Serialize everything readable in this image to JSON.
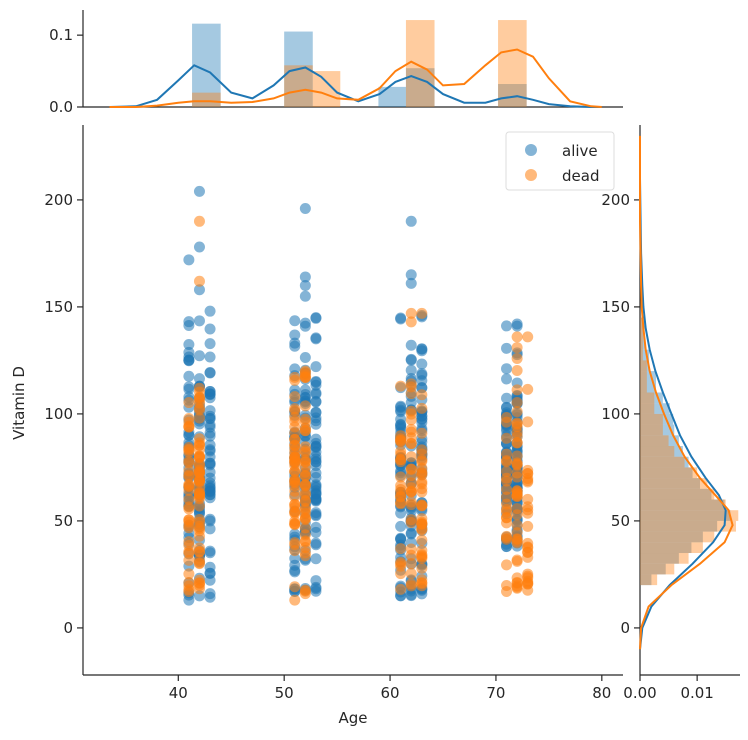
{
  "chart_data": {
    "type": "scatter",
    "title": "",
    "xlabel": "Age",
    "ylabel": "Vitamin D",
    "xlim": [
      31,
      82
    ],
    "ylim": [
      -22,
      235
    ],
    "xticks": [
      40,
      50,
      60,
      70,
      80
    ],
    "yticks": [
      0,
      50,
      100,
      150,
      200
    ],
    "legend": {
      "position": "top-right",
      "entries": [
        "alive",
        "dead"
      ]
    },
    "colors": {
      "alive": "#1f77b4",
      "dead": "#ff7f0e",
      "axis": "#262626"
    },
    "groups": [
      {
        "label": "alive",
        "clusters": [
          {
            "age_min": 41,
            "age_max": 43,
            "vitd_range": [
              13,
              148
            ],
            "dense_range": [
              22,
              130
            ]
          },
          {
            "age_min": 51,
            "age_max": 53,
            "vitd_range": [
              17,
              145
            ],
            "dense_range": [
              20,
              125
            ]
          },
          {
            "age_min": 61,
            "age_max": 63,
            "vitd_range": [
              15,
              146
            ],
            "dense_range": [
              18,
              125
            ]
          },
          {
            "age_min": 71,
            "age_max": 72,
            "vitd_range": [
              38,
              142
            ],
            "dense_range": [
              40,
              110
            ]
          }
        ],
        "outliers": [
          {
            "age": 42,
            "vitd": 204
          },
          {
            "age": 42,
            "vitd": 178
          },
          {
            "age": 41,
            "vitd": 172
          },
          {
            "age": 42,
            "vitd": 158
          },
          {
            "age": 52,
            "vitd": 196
          },
          {
            "age": 52,
            "vitd": 164
          },
          {
            "age": 52,
            "vitd": 160
          },
          {
            "age": 52,
            "vitd": 155
          },
          {
            "age": 62,
            "vitd": 190
          },
          {
            "age": 62,
            "vitd": 165
          },
          {
            "age": 62,
            "vitd": 161
          },
          {
            "age": 72,
            "vitd": 141
          }
        ]
      },
      {
        "label": "dead",
        "clusters": [
          {
            "age_min": 41,
            "age_max": 42,
            "vitd_range": [
              17,
              112
            ],
            "dense_range": [
              25,
              105
            ]
          },
          {
            "age_min": 51,
            "age_max": 52,
            "vitd_range": [
              13,
              120
            ],
            "dense_range": [
              22,
              110
            ]
          },
          {
            "age_min": 61,
            "age_max": 63,
            "vitd_range": [
              18,
              147
            ],
            "dense_range": [
              20,
              110
            ]
          },
          {
            "age_min": 71,
            "age_max": 73,
            "vitd_range": [
              17,
              136
            ],
            "dense_range": [
              20,
              105
            ]
          }
        ],
        "outliers": [
          {
            "age": 42,
            "vitd": 190
          },
          {
            "age": 42,
            "vitd": 162
          },
          {
            "age": 62,
            "vitd": 147
          },
          {
            "age": 62,
            "vitd": 143
          },
          {
            "age": 72,
            "vitd": 136
          },
          {
            "age": 72,
            "vitd": 131
          }
        ]
      }
    ],
    "marginal_top": {
      "xlim": [
        31,
        82
      ],
      "ylim": [
        0,
        0.135
      ],
      "yticks": [
        0.0,
        0.1
      ],
      "ytick_labels": [
        "0.0",
        "0.1"
      ],
      "hist": {
        "alive": [
          {
            "x0": 41.3,
            "x1": 44.0,
            "h": 0.116
          },
          {
            "x0": 50.0,
            "x1": 52.7,
            "h": 0.105
          },
          {
            "x0": 58.9,
            "x1": 61.5,
            "h": 0.028
          },
          {
            "x0": 61.5,
            "x1": 64.2,
            "h": 0.054
          },
          {
            "x0": 70.2,
            "x1": 72.9,
            "h": 0.032
          }
        ],
        "dead": [
          {
            "x0": 41.3,
            "x1": 44.0,
            "h": 0.02
          },
          {
            "x0": 50.0,
            "x1": 52.7,
            "h": 0.058
          },
          {
            "x0": 52.7,
            "x1": 55.3,
            "h": 0.05
          },
          {
            "x0": 61.5,
            "x1": 64.2,
            "h": 0.121
          },
          {
            "x0": 70.2,
            "x1": 72.9,
            "h": 0.121
          }
        ]
      },
      "kde": {
        "x": [
          33.5,
          36,
          38,
          40,
          41.5,
          43,
          45,
          47,
          49,
          50.5,
          52,
          53.5,
          55,
          57,
          59,
          60.5,
          62,
          63.5,
          65,
          67,
          69,
          70.5,
          72,
          73.5,
          75,
          77,
          79,
          80
        ],
        "alive": [
          0.0,
          0.001,
          0.01,
          0.037,
          0.058,
          0.048,
          0.02,
          0.012,
          0.03,
          0.05,
          0.055,
          0.042,
          0.02,
          0.008,
          0.018,
          0.035,
          0.043,
          0.035,
          0.018,
          0.006,
          0.006,
          0.012,
          0.015,
          0.01,
          0.004,
          0.001,
          0.0,
          0.0
        ],
        "dead": [
          0.0,
          0.0,
          0.002,
          0.006,
          0.008,
          0.008,
          0.006,
          0.007,
          0.012,
          0.02,
          0.024,
          0.02,
          0.012,
          0.01,
          0.026,
          0.05,
          0.063,
          0.052,
          0.03,
          0.032,
          0.058,
          0.076,
          0.08,
          0.07,
          0.04,
          0.008,
          0.001,
          0.0
        ]
      }
    },
    "marginal_right": {
      "xlim": [
        0,
        0.0175
      ],
      "xticks": [
        0.0,
        0.01
      ],
      "xtick_labels": [
        "0.00",
        "0.01"
      ],
      "hist": {
        "alive": [
          {
            "y0": 20,
            "y1": 25,
            "w": 0.002
          },
          {
            "y0": 25,
            "y1": 30,
            "w": 0.0045
          },
          {
            "y0": 30,
            "y1": 35,
            "w": 0.0068
          },
          {
            "y0": 35,
            "y1": 40,
            "w": 0.009
          },
          {
            "y0": 40,
            "y1": 45,
            "w": 0.011
          },
          {
            "y0": 45,
            "y1": 50,
            "w": 0.0135
          },
          {
            "y0": 50,
            "y1": 55,
            "w": 0.0158
          },
          {
            "y0": 55,
            "y1": 60,
            "w": 0.0148
          },
          {
            "y0": 60,
            "y1": 65,
            "w": 0.0125
          },
          {
            "y0": 65,
            "y1": 70,
            "w": 0.0105
          },
          {
            "y0": 70,
            "y1": 75,
            "w": 0.0092
          },
          {
            "y0": 75,
            "y1": 80,
            "w": 0.0085
          },
          {
            "y0": 80,
            "y1": 85,
            "w": 0.0075
          },
          {
            "y0": 85,
            "y1": 90,
            "w": 0.0068
          },
          {
            "y0": 90,
            "y1": 95,
            "w": 0.006
          },
          {
            "y0": 95,
            "y1": 100,
            "w": 0.0058
          },
          {
            "y0": 100,
            "y1": 105,
            "w": 0.0052
          },
          {
            "y0": 105,
            "y1": 110,
            "w": 0.004
          },
          {
            "y0": 110,
            "y1": 120,
            "w": 0.0028
          },
          {
            "y0": 120,
            "y1": 130,
            "w": 0.0016
          },
          {
            "y0": 130,
            "y1": 145,
            "w": 0.0008
          }
        ],
        "dead": [
          {
            "y0": 20,
            "y1": 25,
            "w": 0.003
          },
          {
            "y0": 25,
            "y1": 30,
            "w": 0.006
          },
          {
            "y0": 30,
            "y1": 35,
            "w": 0.0085
          },
          {
            "y0": 35,
            "y1": 40,
            "w": 0.011
          },
          {
            "y0": 40,
            "y1": 45,
            "w": 0.013
          },
          {
            "y0": 45,
            "y1": 50,
            "w": 0.0168
          },
          {
            "y0": 50,
            "y1": 55,
            "w": 0.0172
          },
          {
            "y0": 55,
            "y1": 60,
            "w": 0.015
          },
          {
            "y0": 60,
            "y1": 65,
            "w": 0.013
          },
          {
            "y0": 65,
            "y1": 70,
            "w": 0.0118
          },
          {
            "y0": 70,
            "y1": 75,
            "w": 0.01
          },
          {
            "y0": 75,
            "y1": 80,
            "w": 0.0078
          },
          {
            "y0": 80,
            "y1": 85,
            "w": 0.006
          },
          {
            "y0": 85,
            "y1": 90,
            "w": 0.005
          },
          {
            "y0": 90,
            "y1": 100,
            "w": 0.004
          },
          {
            "y0": 100,
            "y1": 110,
            "w": 0.0025
          },
          {
            "y0": 110,
            "y1": 125,
            "w": 0.0012
          },
          {
            "y0": 125,
            "y1": 145,
            "w": 0.0005
          }
        ]
      },
      "kde": {
        "y": [
          -10,
          0,
          10,
          20,
          30,
          40,
          48,
          55,
          62,
          70,
          80,
          90,
          100,
          110,
          120,
          130,
          140,
          150,
          160,
          175,
          190,
          210,
          230
        ],
        "alive": [
          0.0,
          0.0004,
          0.002,
          0.0052,
          0.0092,
          0.0128,
          0.0148,
          0.015,
          0.0138,
          0.0115,
          0.009,
          0.007,
          0.0055,
          0.004,
          0.0027,
          0.0017,
          0.001,
          0.0006,
          0.0004,
          0.0002,
          0.0001,
          0.0,
          0.0
        ],
        "dead": [
          0.0,
          0.0002,
          0.0015,
          0.0055,
          0.0105,
          0.0148,
          0.0162,
          0.0155,
          0.0132,
          0.0105,
          0.0078,
          0.0058,
          0.0042,
          0.0028,
          0.0017,
          0.001,
          0.0006,
          0.0003,
          0.0002,
          0.0001,
          0.0,
          0.0,
          0.0
        ]
      }
    }
  }
}
